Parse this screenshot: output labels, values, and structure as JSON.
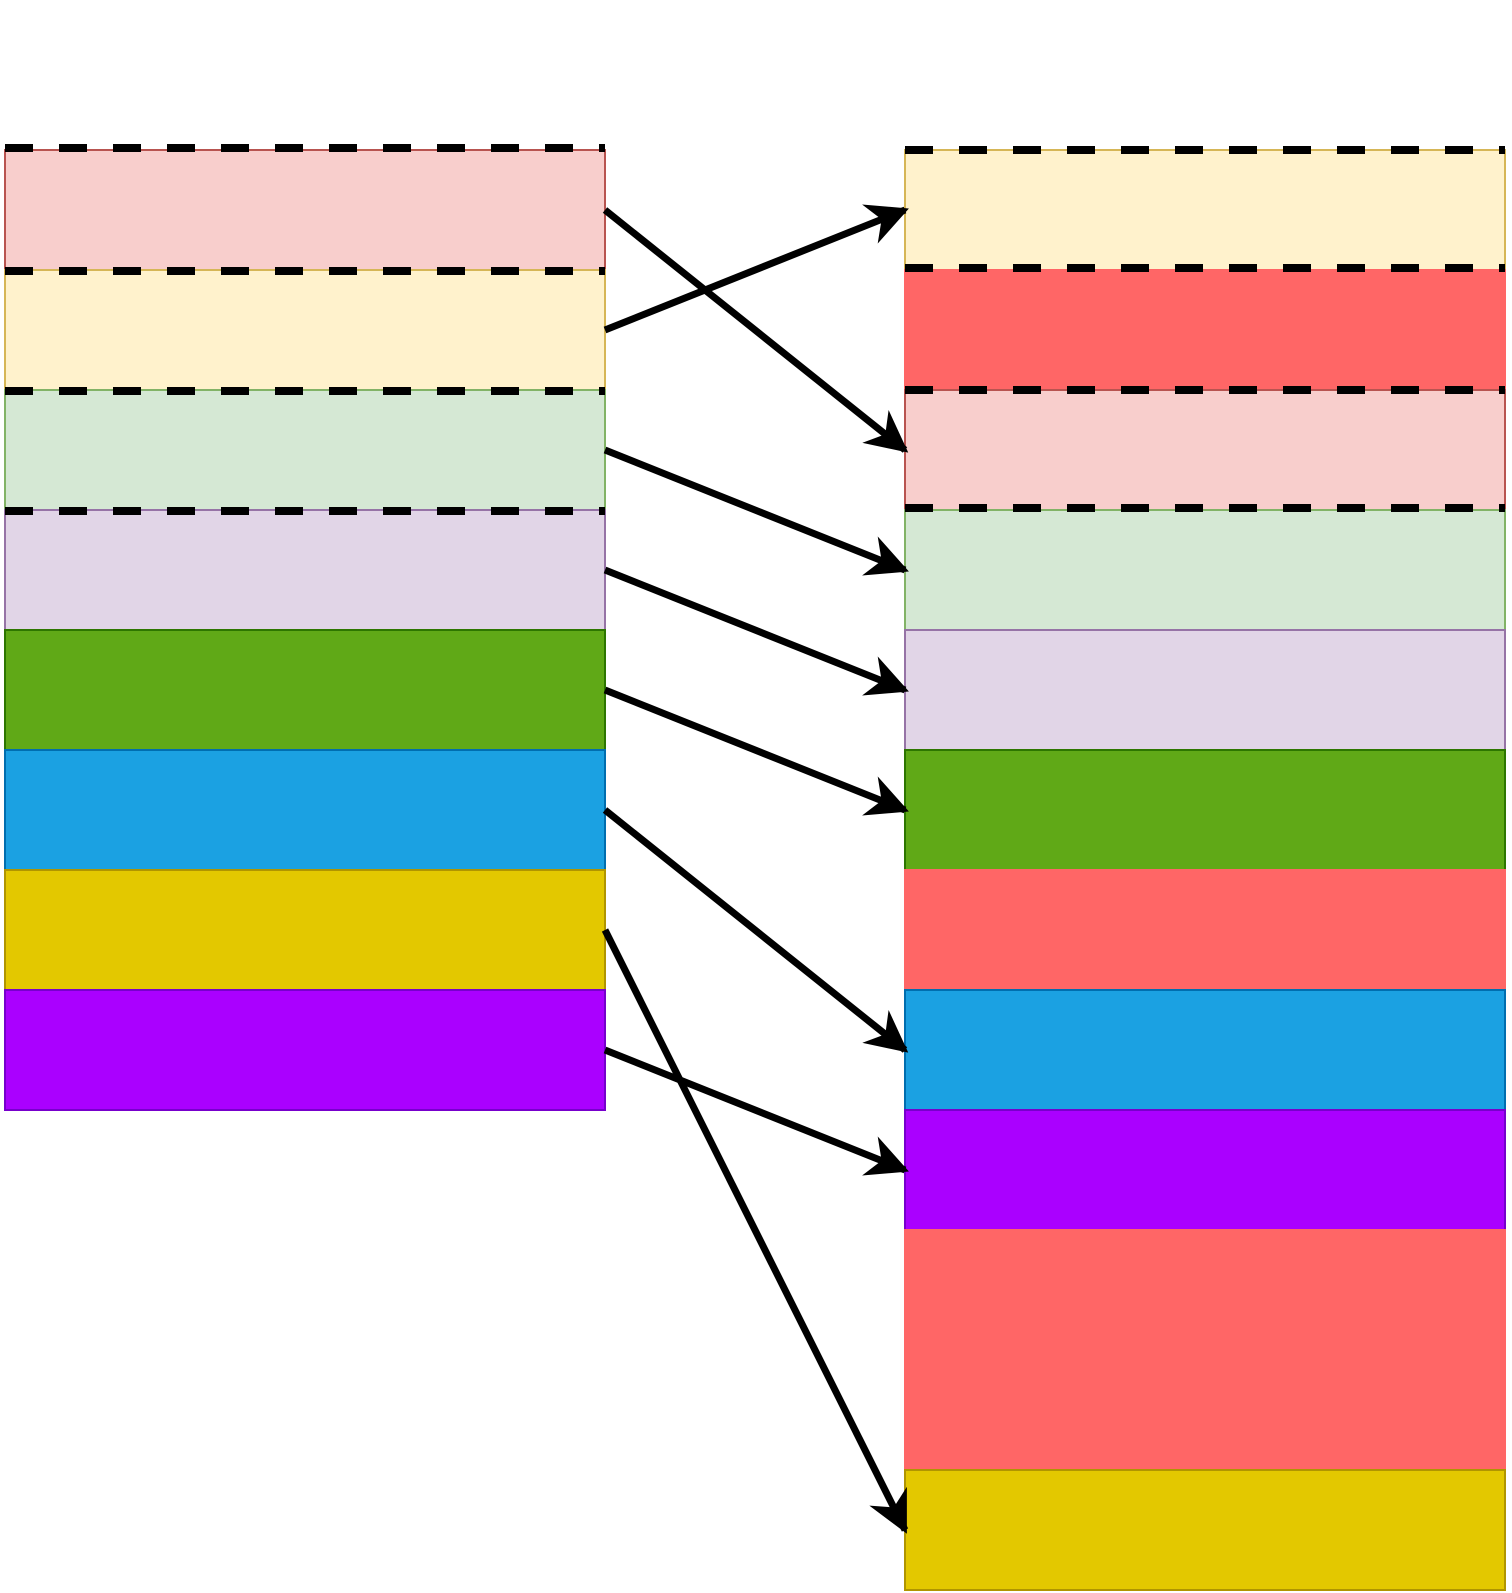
{
  "diagram": {
    "description_visible_text": "",
    "left_column": {
      "blocks": [
        {
          "id": "L1",
          "fill": "#f8cecc",
          "stroke": "#b85450",
          "dashed_top": true
        },
        {
          "id": "L2",
          "fill": "#fff2cc",
          "stroke": "#d6b656",
          "dashed_top": true
        },
        {
          "id": "L3",
          "fill": "#d5e8d4",
          "stroke": "#82b366",
          "dashed_top": true
        },
        {
          "id": "L4",
          "fill": "#e1d5e7",
          "stroke": "#9673a6",
          "dashed_top": true
        },
        {
          "id": "L5",
          "fill": "#60a917",
          "stroke": "#2d7600",
          "dashed_top": false
        },
        {
          "id": "L6",
          "fill": "#1ba1e2",
          "stroke": "#006eaf",
          "dashed_top": false
        },
        {
          "id": "L7",
          "fill": "#e3c800",
          "stroke": "#b09500",
          "dashed_top": false
        },
        {
          "id": "L8",
          "fill": "#aa00ff",
          "stroke": "#7700cc",
          "dashed_top": false
        }
      ]
    },
    "right_column": {
      "blocks": [
        {
          "id": "R1",
          "fill": "#fff2cc",
          "stroke": "#d6b656",
          "rows": 1,
          "dashed": true
        },
        {
          "id": "R2",
          "fill": "#ff6666",
          "stroke": "#ff6666",
          "rows": 1,
          "dashed": false
        },
        {
          "id": "R3",
          "fill": "#f8cecc",
          "stroke": "#b85450",
          "rows": 1,
          "dashed": true
        },
        {
          "id": "R4",
          "fill": "#d5e8d4",
          "stroke": "#82b366",
          "rows": 1,
          "dashed": false
        },
        {
          "id": "R5",
          "fill": "#e1d5e7",
          "stroke": "#9673a6",
          "rows": 1,
          "dashed": false
        },
        {
          "id": "R6",
          "fill": "#60a917",
          "stroke": "#2d7600",
          "rows": 1,
          "dashed": false
        },
        {
          "id": "R7",
          "fill": "#ff6666",
          "stroke": "#ff6666",
          "rows": 1,
          "dashed": false
        },
        {
          "id": "R8",
          "fill": "#1ba1e2",
          "stroke": "#006eaf",
          "rows": 1,
          "dashed": false
        },
        {
          "id": "R9",
          "fill": "#aa00ff",
          "stroke": "#7700cc",
          "rows": 1,
          "dashed": false
        },
        {
          "id": "R10",
          "fill": "#ff6666",
          "stroke": "#ff6666",
          "rows": 2,
          "dashed": false
        },
        {
          "id": "R11",
          "fill": "#e3c800",
          "stroke": "#b09500",
          "rows": 1,
          "dashed": false
        }
      ]
    },
    "mappings": [
      {
        "from": "L1",
        "to": "R3"
      },
      {
        "from": "L2",
        "to": "R1"
      },
      {
        "from": "L3",
        "to": "R4"
      },
      {
        "from": "L4",
        "to": "R5"
      },
      {
        "from": "L5",
        "to": "R6"
      },
      {
        "from": "L6",
        "to": "R8"
      },
      {
        "from": "L7",
        "to": "R11"
      },
      {
        "from": "L8",
        "to": "R9"
      }
    ],
    "arrow_color": "#000000",
    "dash_color": "#000000"
  }
}
